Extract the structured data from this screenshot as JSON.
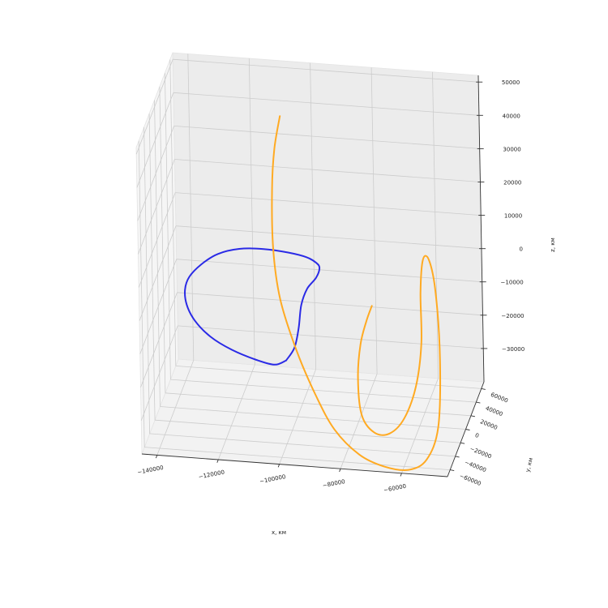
{
  "chart_data": {
    "type": "line",
    "projection": "3d",
    "title": "",
    "xlabel": "x, км",
    "ylabel": "y, км",
    "zlabel": "z, км",
    "xlim": [
      -145000,
      -45000
    ],
    "ylim": [
      -70000,
      70000
    ],
    "zlim": [
      -40000,
      52000
    ],
    "x_ticks": [
      -140000,
      -120000,
      -100000,
      -80000,
      -60000
    ],
    "y_ticks": [
      -60000,
      -40000,
      -20000,
      0,
      20000,
      40000,
      60000
    ],
    "z_ticks": [
      -30000,
      -20000,
      -10000,
      0,
      10000,
      20000,
      30000,
      40000,
      50000
    ],
    "x_tick_labels": [
      "−140000",
      "−120000",
      "−100000",
      "−80000",
      "−60000"
    ],
    "y_tick_labels": [
      "−60000",
      "−40000",
      "−20000",
      "0",
      "20000",
      "40000",
      "60000"
    ],
    "z_tick_labels": [
      "−30000",
      "−20000",
      "−10000",
      "0",
      "10000",
      "20000",
      "30000",
      "40000",
      "50000"
    ],
    "grid": true,
    "series": [
      {
        "color": "#2a2ae6",
        "points": [
          [
            -100300,
            -35000,
            -16000
          ],
          [
            -97500,
            -35000,
            -12000
          ],
          [
            -96000,
            -35000,
            -6000
          ],
          [
            -95000,
            -35000,
            1000
          ],
          [
            -93000,
            -35000,
            6000
          ],
          [
            -90000,
            -35000,
            9500
          ],
          [
            -88800,
            -35000,
            12500
          ],
          [
            -89800,
            -35000,
            14000
          ],
          [
            -93000,
            -35000,
            15500
          ],
          [
            -99000,
            -35000,
            16500
          ],
          [
            -107000,
            -35000,
            17000
          ],
          [
            -115000,
            -35000,
            16500
          ],
          [
            -122000,
            -35000,
            14500
          ],
          [
            -127500,
            -35000,
            11000
          ],
          [
            -131500,
            -35000,
            7000
          ],
          [
            -133000,
            -35000,
            3000
          ],
          [
            -132500,
            -35000,
            -1500
          ],
          [
            -130000,
            -35000,
            -6000
          ],
          [
            -125000,
            -35000,
            -10500
          ],
          [
            -118000,
            -35000,
            -14000
          ],
          [
            -110000,
            -35000,
            -16500
          ],
          [
            -104000,
            -35000,
            -17500
          ],
          [
            -100300,
            -35000,
            -16000
          ]
        ]
      },
      {
        "color": "#ffaa22",
        "points": [
          [
            -104000,
            0,
            50000
          ],
          [
            -106000,
            0,
            40000
          ],
          [
            -107000,
            0,
            28000
          ],
          [
            -107000,
            0,
            10000
          ],
          [
            -105000,
            0,
            -5000
          ],
          [
            -100000,
            0,
            -20000
          ],
          [
            -94000,
            0,
            -33000
          ],
          [
            -88000,
            0,
            -43000
          ],
          [
            -80000,
            0,
            -50000
          ],
          [
            -72000,
            0,
            -53000
          ],
          [
            -64000,
            0,
            -53500
          ],
          [
            -58000,
            0,
            -50000
          ],
          [
            -54000,
            0,
            -40000
          ],
          [
            -53000,
            0,
            -20000
          ],
          [
            -54000,
            0,
            0
          ],
          [
            -56000,
            0,
            10000
          ],
          [
            -58000,
            0,
            10000
          ],
          [
            -59000,
            0,
            0
          ],
          [
            -59000,
            0,
            -15000
          ],
          [
            -61000,
            0,
            -28000
          ],
          [
            -65000,
            0,
            -38000
          ],
          [
            -70000,
            0,
            -43000
          ],
          [
            -75000,
            0,
            -43000
          ],
          [
            -79000,
            0,
            -38000
          ],
          [
            -80000,
            0,
            -27000
          ],
          [
            -79000,
            0,
            -17000
          ],
          [
            -77000,
            0,
            -10000
          ],
          [
            -75000,
            0,
            -5000
          ]
        ]
      }
    ]
  }
}
